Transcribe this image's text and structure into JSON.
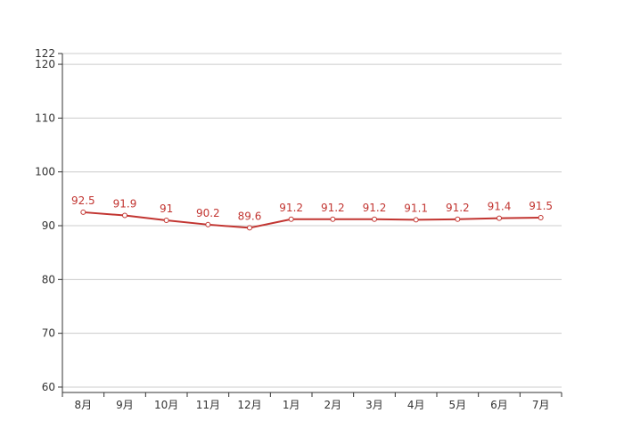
{
  "chart_data": {
    "type": "line",
    "categories": [
      "8月",
      "9月",
      "10月",
      "11月",
      "12月",
      "1月",
      "2月",
      "3月",
      "4月",
      "5月",
      "6月",
      "7月"
    ],
    "series": [
      {
        "values": [
          92.5,
          91.9,
          91,
          90.2,
          89.6,
          91.2,
          91.2,
          91.2,
          91.1,
          91.2,
          91.4,
          91.5
        ]
      }
    ],
    "value_labels": [
      "92.5",
      "91.9",
      "91",
      "90.2",
      "89.6",
      "91.2",
      "91.2",
      "91.2",
      "91.1",
      "91.2",
      "91.4",
      "91.5"
    ],
    "yticks": [
      60,
      70,
      80,
      90,
      100,
      110,
      120,
      122
    ],
    "ytick_labels": [
      "60",
      "70",
      "80",
      "90",
      "100",
      "110",
      "120",
      "122"
    ],
    "ylim": [
      59,
      122
    ],
    "grid": true,
    "line_color": "#c23531",
    "title": "",
    "xlabel": "",
    "ylabel": ""
  }
}
